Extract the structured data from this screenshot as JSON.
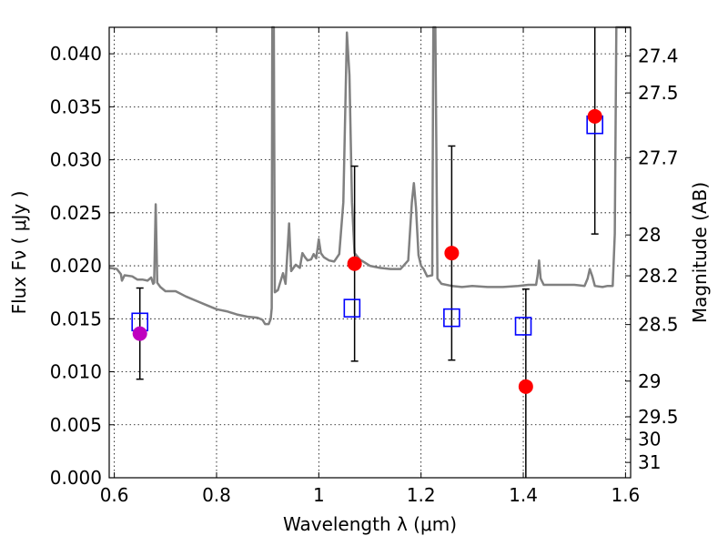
{
  "chart_data": {
    "type": "scatter",
    "title": "",
    "xlabel": "Wavelength  λ (μm)",
    "ylabel": "Flux  Fν  ( μJy )",
    "ylabel_right": "Magnitude (AB)",
    "xlim": [
      0.59,
      1.61
    ],
    "ylim": [
      0.0,
      0.0425
    ],
    "grid": true,
    "x_ticks": [
      {
        "value": 0.6,
        "label": "0.6"
      },
      {
        "value": 0.8,
        "label": "0.8"
      },
      {
        "value": 1.0,
        "label": "1"
      },
      {
        "value": 1.2,
        "label": "1.2"
      },
      {
        "value": 1.4,
        "label": "1.4"
      },
      {
        "value": 1.6,
        "label": "1.6"
      }
    ],
    "y_ticks": [
      {
        "value": 0.0,
        "label": "0.000"
      },
      {
        "value": 0.005,
        "label": "0.005"
      },
      {
        "value": 0.01,
        "label": "0.010"
      },
      {
        "value": 0.015,
        "label": "0.015"
      },
      {
        "value": 0.02,
        "label": "0.020"
      },
      {
        "value": 0.025,
        "label": "0.025"
      },
      {
        "value": 0.03,
        "label": "0.030"
      },
      {
        "value": 0.035,
        "label": "0.035"
      },
      {
        "value": 0.04,
        "label": "0.040"
      }
    ],
    "mag_ticks": [
      {
        "value": 27.4,
        "label": "27.4"
      },
      {
        "value": 27.5,
        "label": "27.5"
      },
      {
        "value": 27.7,
        "label": "27.7"
      },
      {
        "value": 28.0,
        "label": "28"
      },
      {
        "value": 28.2,
        "label": "28.2"
      },
      {
        "value": 28.5,
        "label": "28.5"
      },
      {
        "value": 29.0,
        "label": "29"
      },
      {
        "value": 29.5,
        "label": "29.5"
      },
      {
        "value": 30.0,
        "label": "30"
      },
      {
        "value": 31.0,
        "label": "31"
      }
    ],
    "spectrum": {
      "color": "#808080",
      "points": [
        [
          0.59,
          0.0198
        ],
        [
          0.605,
          0.0197
        ],
        [
          0.613,
          0.0192
        ],
        [
          0.615,
          0.0186
        ],
        [
          0.62,
          0.0191
        ],
        [
          0.635,
          0.019
        ],
        [
          0.645,
          0.0187
        ],
        [
          0.655,
          0.0187
        ],
        [
          0.665,
          0.0186
        ],
        [
          0.672,
          0.0189
        ],
        [
          0.676,
          0.0183
        ],
        [
          0.678,
          0.0184
        ],
        [
          0.681,
          0.0258
        ],
        [
          0.684,
          0.0184
        ],
        [
          0.69,
          0.018
        ],
        [
          0.7,
          0.0176
        ],
        [
          0.72,
          0.0176
        ],
        [
          0.74,
          0.0171
        ],
        [
          0.76,
          0.0167
        ],
        [
          0.78,
          0.0163
        ],
        [
          0.8,
          0.0159
        ],
        [
          0.82,
          0.0157
        ],
        [
          0.84,
          0.0154
        ],
        [
          0.86,
          0.0152
        ],
        [
          0.88,
          0.0151
        ],
        [
          0.89,
          0.0149
        ],
        [
          0.895,
          0.0145
        ],
        [
          0.902,
          0.0145
        ],
        [
          0.906,
          0.015
        ],
        [
          0.908,
          0.016
        ],
        [
          0.909,
          0.0425
        ],
        [
          0.912,
          0.0425
        ],
        [
          0.914,
          0.0175
        ],
        [
          0.92,
          0.0177
        ],
        [
          0.93,
          0.0193
        ],
        [
          0.935,
          0.0183
        ],
        [
          0.942,
          0.024
        ],
        [
          0.946,
          0.0195
        ],
        [
          0.955,
          0.0201
        ],
        [
          0.963,
          0.0198
        ],
        [
          0.968,
          0.0212
        ],
        [
          0.973,
          0.0208
        ],
        [
          0.978,
          0.0205
        ],
        [
          0.985,
          0.0206
        ],
        [
          0.99,
          0.0211
        ],
        [
          0.995,
          0.0207
        ],
        [
          1.0,
          0.0225
        ],
        [
          1.004,
          0.0212
        ],
        [
          1.01,
          0.0208
        ],
        [
          1.02,
          0.0205
        ],
        [
          1.03,
          0.0204
        ],
        [
          1.04,
          0.0211
        ],
        [
          1.048,
          0.026
        ],
        [
          1.055,
          0.042
        ],
        [
          1.06,
          0.038
        ],
        [
          1.065,
          0.026
        ],
        [
          1.07,
          0.0212
        ],
        [
          1.08,
          0.0206
        ],
        [
          1.1,
          0.02
        ],
        [
          1.12,
          0.0198
        ],
        [
          1.14,
          0.0197
        ],
        [
          1.16,
          0.0197
        ],
        [
          1.175,
          0.0205
        ],
        [
          1.182,
          0.026
        ],
        [
          1.186,
          0.0278
        ],
        [
          1.19,
          0.0255
        ],
        [
          1.195,
          0.021
        ],
        [
          1.2,
          0.02
        ],
        [
          1.205,
          0.0197
        ],
        [
          1.212,
          0.019
        ],
        [
          1.222,
          0.0191
        ],
        [
          1.224,
          0.0425
        ],
        [
          1.228,
          0.0425
        ],
        [
          1.232,
          0.0188
        ],
        [
          1.24,
          0.0183
        ],
        [
          1.26,
          0.0181
        ],
        [
          1.28,
          0.018
        ],
        [
          1.3,
          0.0181
        ],
        [
          1.33,
          0.018
        ],
        [
          1.36,
          0.018
        ],
        [
          1.39,
          0.0181
        ],
        [
          1.41,
          0.0182
        ],
        [
          1.425,
          0.0182
        ],
        [
          1.428,
          0.0191
        ],
        [
          1.431,
          0.0205
        ],
        [
          1.434,
          0.0188
        ],
        [
          1.44,
          0.0182
        ],
        [
          1.46,
          0.0182
        ],
        [
          1.48,
          0.0182
        ],
        [
          1.5,
          0.0182
        ],
        [
          1.52,
          0.0181
        ],
        [
          1.526,
          0.0188
        ],
        [
          1.53,
          0.0197
        ],
        [
          1.535,
          0.019
        ],
        [
          1.54,
          0.0181
        ],
        [
          1.555,
          0.018
        ],
        [
          1.565,
          0.0181
        ],
        [
          1.575,
          0.0181
        ],
        [
          1.579,
          0.023
        ],
        [
          1.582,
          0.0425
        ],
        [
          1.61,
          0.0425
        ]
      ]
    },
    "series": [
      {
        "marker": "open-square",
        "color": "#0000ff",
        "points": [
          {
            "x": 0.65,
            "y": 0.0147
          },
          {
            "x": 1.065,
            "y": 0.016
          },
          {
            "x": 1.26,
            "y": 0.0151
          },
          {
            "x": 1.4,
            "y": 0.0143
          },
          {
            "x": 1.54,
            "y": 0.0333
          }
        ]
      },
      {
        "marker": "filled-circle",
        "color": "#ff0000",
        "points": [
          {
            "x": 1.07,
            "y": 0.0202,
            "err_lo": 0.011,
            "err_hi": 0.0294
          },
          {
            "x": 1.26,
            "y": 0.0212,
            "err_lo": 0.0111,
            "err_hi": 0.0313
          },
          {
            "x": 1.405,
            "y": 0.0086,
            "err_lo": 0.0,
            "err_hi": 0.0178
          },
          {
            "x": 1.54,
            "y": 0.0341,
            "err_lo": 0.023,
            "err_hi": 0.0425
          }
        ]
      },
      {
        "marker": "filled-circle",
        "color": "#bf00bf",
        "points": [
          {
            "x": 0.65,
            "y": 0.0136,
            "err_lo": 0.0093,
            "err_hi": 0.0179
          }
        ]
      }
    ]
  }
}
